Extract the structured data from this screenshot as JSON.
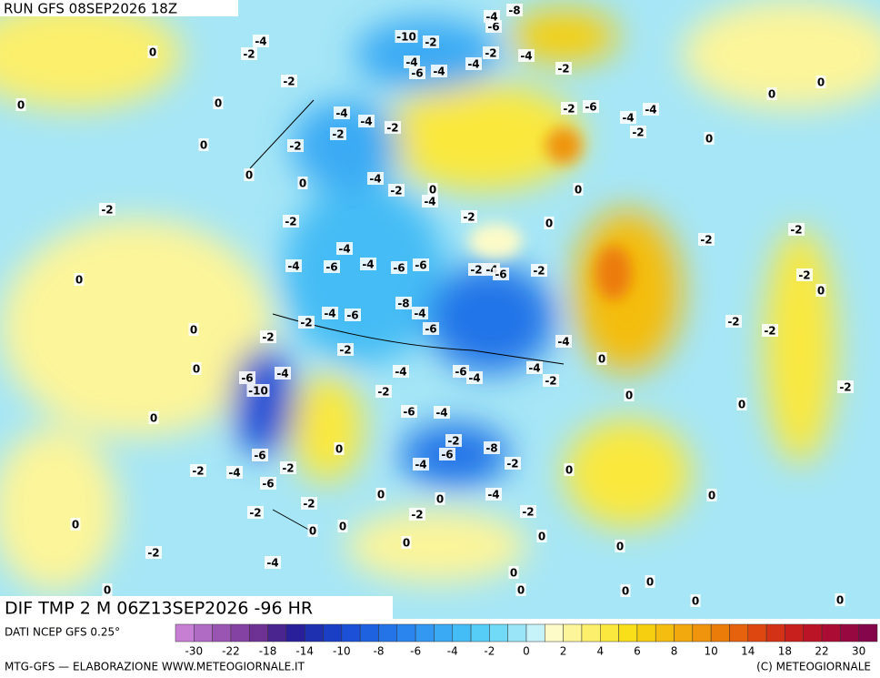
{
  "header": {
    "run": "RUN GFS 08SEP2026 18Z"
  },
  "map": {
    "title": "DIF TMP 2 M 06Z13SEP2026 -96 HR",
    "contour_labels": [
      "0",
      "-4",
      "-2",
      "0",
      "0",
      "-2",
      "0",
      "0",
      "0",
      "-2",
      "0",
      "0",
      "0",
      "0",
      "0",
      "-2",
      "0",
      "-2",
      "0",
      "-4",
      "-2",
      "-6",
      "-4",
      "-6",
      "-2",
      "-2",
      "0",
      "0",
      "0",
      "-2",
      "0",
      "0",
      "-6",
      "-10",
      "-4",
      "-2",
      "-2",
      "-4",
      "-6",
      "-2",
      "-4",
      "-6",
      "-4",
      "-4",
      "-6",
      "-6",
      "-2",
      "-2",
      "-2",
      "-4",
      "-4",
      "-2",
      "-4",
      "-2",
      "-4",
      "0",
      "-2",
      "-8",
      "-4",
      "-6",
      "-4",
      "-2",
      "-6",
      "-4",
      "-6",
      "-4",
      "-2",
      "-6",
      "-8",
      "-2",
      "-4",
      "-4",
      "-2",
      "0",
      "0",
      "0",
      "0",
      "0",
      "0",
      "0",
      "0",
      "0",
      "0",
      "0",
      "0",
      "0",
      "-4",
      "-4",
      "-2",
      "-2",
      "-2",
      "-4",
      "-6",
      "0",
      "0",
      "-2",
      "-2",
      "-2",
      "-2",
      "0",
      "-2",
      "-2",
      "0",
      "0",
      "0",
      "-2",
      "-4",
      "-4",
      "-6",
      "-2",
      "-2",
      "-4",
      "-6",
      "-8",
      "-4",
      "-2",
      "-4",
      "-2",
      "-10",
      "-4",
      "-6",
      "-4"
    ]
  },
  "legend": {
    "source": "DATI NCEP GFS 0.25°",
    "colors": [
      "#c77fd4",
      "#b06bc4",
      "#9a55b3",
      "#8442a3",
      "#6e3294",
      "#4a2590",
      "#2a1f9a",
      "#1e2fb0",
      "#1a3fc4",
      "#1c50d6",
      "#1e62e0",
      "#2474e8",
      "#2a86ee",
      "#3298f2",
      "#3aaaf4",
      "#44bcf5",
      "#55cdf6",
      "#70daf7",
      "#9ae6f8",
      "#c6f2fa",
      "#fdfbc8",
      "#fcf59a",
      "#fbef6c",
      "#fae83e",
      "#f8df1a",
      "#f6cf10",
      "#f4bd10",
      "#f2a90e",
      "#ef940c",
      "#ec7c0a",
      "#e6620c",
      "#de4810",
      "#d43216",
      "#c8201c",
      "#ba1426",
      "#aa0c34",
      "#980840",
      "#85064a"
    ],
    "labels": [
      "-30",
      "-22",
      "-18",
      "-14",
      "-10",
      "-8",
      "-6",
      "-4",
      "-2",
      "0",
      "2",
      "4",
      "6",
      "8",
      "10",
      "14",
      "18",
      "22",
      "30"
    ]
  },
  "footer": {
    "left": "MTG-GFS — ELABORAZIONE WWW.METEOGIORNALE.IT",
    "right": "(C) METEOGIORNALE"
  }
}
